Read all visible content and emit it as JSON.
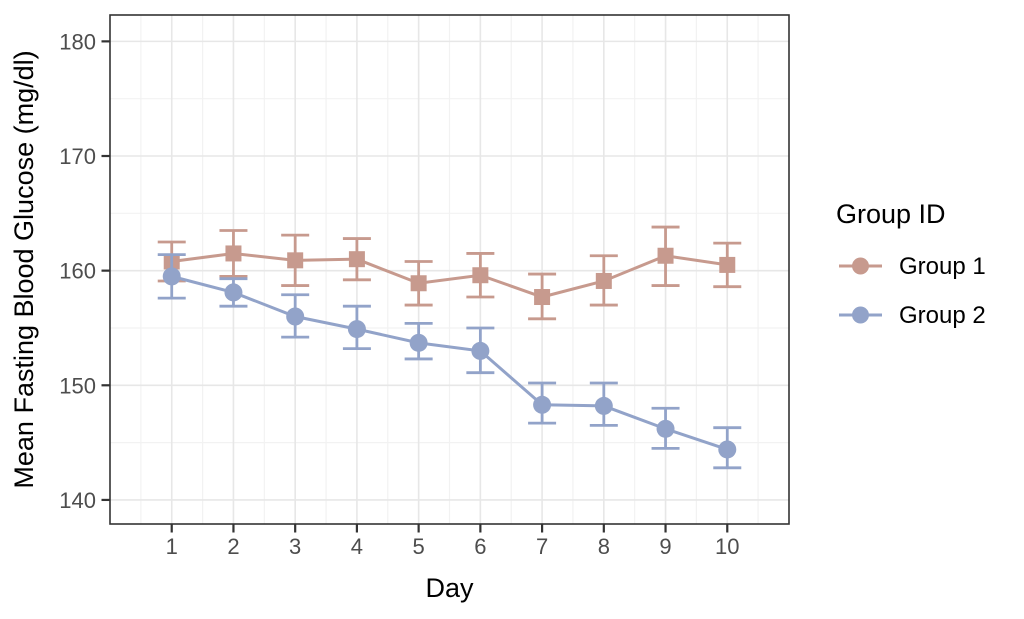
{
  "figure": {
    "background": "#FFFFFF",
    "panel": {
      "border_color": "#333333",
      "grid_major_color": "#E7E7E7",
      "grid_minor_color": "#F2F2F2",
      "tick_color": "#333333",
      "tick_label_color": "#4D4D4D"
    }
  },
  "chart_data": {
    "type": "line",
    "title": "",
    "xlabel": "Day",
    "ylabel": "Mean Fasting Blood Glucose (mg/dl)",
    "x": [
      1,
      2,
      3,
      4,
      5,
      6,
      7,
      8,
      9,
      10
    ],
    "x_ticks": [
      1,
      2,
      3,
      4,
      5,
      6,
      7,
      8,
      9,
      10
    ],
    "y_ticks": [
      140,
      150,
      160,
      170,
      180
    ],
    "y_minor_ticks": [
      145,
      155,
      165,
      175
    ],
    "x_minor_ticks": [
      0.5,
      1.5,
      2.5,
      3.5,
      4.5,
      5.5,
      6.5,
      7.5,
      8.5,
      9.5,
      10.5
    ],
    "xlim": [
      0,
      11
    ],
    "ylim": [
      137.9,
      182.3
    ],
    "grid": "major+minor",
    "error_bars": true,
    "legend": {
      "title": "Group ID",
      "position": "right",
      "entries": [
        "Group 1",
        "Group 2"
      ]
    },
    "series": [
      {
        "name": "Group 1",
        "color": "#C79A8E",
        "marker": "square",
        "values": [
          160.8,
          161.5,
          160.9,
          161.0,
          158.9,
          159.6,
          157.7,
          159.1,
          161.3,
          160.5
        ],
        "error_high": [
          162.5,
          163.5,
          163.1,
          162.8,
          160.8,
          161.5,
          159.7,
          161.3,
          163.8,
          162.4
        ],
        "error_low": [
          159.1,
          159.5,
          158.7,
          159.2,
          157.0,
          157.7,
          155.8,
          157.0,
          158.7,
          158.6
        ]
      },
      {
        "name": "Group 2",
        "color": "#92A3C9",
        "marker": "circle",
        "values": [
          159.5,
          158.1,
          156.0,
          154.9,
          153.7,
          153.0,
          148.3,
          148.2,
          146.2,
          144.4
        ],
        "error_high": [
          161.4,
          159.3,
          157.9,
          156.9,
          155.4,
          155.0,
          150.2,
          150.2,
          148.0,
          146.3
        ],
        "error_low": [
          157.6,
          156.9,
          154.2,
          153.2,
          152.3,
          151.1,
          146.7,
          146.5,
          144.5,
          142.8
        ]
      }
    ]
  }
}
